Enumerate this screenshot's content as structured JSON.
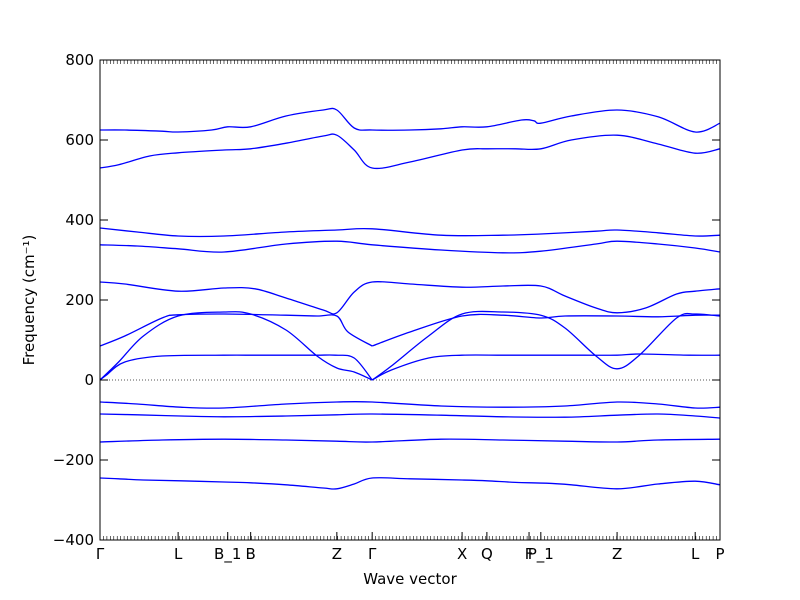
{
  "chart_data": {
    "type": "line",
    "title": "",
    "xlabel": "Wave vector",
    "ylabel": "Frequency (cm⁻¹)",
    "ylim": [
      -400,
      800
    ],
    "yticks": [
      -400,
      -200,
      0,
      200,
      400,
      600,
      800
    ],
    "xlim": [
      0,
      1
    ],
    "grid": false,
    "legend": "none",
    "line_color": "#0000ff",
    "zero_line_color": "#555555",
    "xticks": [
      {
        "label": "Γ",
        "x": 0.0
      },
      {
        "label": "L",
        "x": 0.126
      },
      {
        "label": "B_1",
        "x": 0.206
      },
      {
        "label": "B",
        "x": 0.243
      },
      {
        "label": "Z",
        "x": 0.382
      },
      {
        "label": "Γ",
        "x": 0.439
      },
      {
        "label": "X",
        "x": 0.584
      },
      {
        "label": "Q",
        "x": 0.624
      },
      {
        "label": "F",
        "x": 0.692
      },
      {
        "label": "P_1",
        "x": 0.711
      },
      {
        "label": "Z",
        "x": 0.834
      },
      {
        "label": "L",
        "x": 0.96
      },
      {
        "label": "P",
        "x": 1.0
      }
    ],
    "series": [
      {
        "x": [
          0,
          0.03,
          0.07,
          0.13,
          0.2,
          0.243,
          0.3,
          0.36,
          0.382,
          0.41,
          0.439,
          0.5,
          0.584,
          0.624,
          0.67,
          0.72,
          0.76,
          0.834,
          0.9,
          0.96,
          1
        ],
        "values": [
          -245,
          -247,
          -250,
          -252,
          -255,
          -257,
          -262,
          -270,
          -272,
          -260,
          -245,
          -247,
          -250,
          -252,
          -256,
          -258,
          -262,
          -272,
          -260,
          -253,
          -262
        ]
      },
      {
        "x": [
          0,
          0.1,
          0.2,
          0.3,
          0.382,
          0.439,
          0.55,
          0.65,
          0.75,
          0.834,
          0.9,
          1
        ],
        "values": [
          -155,
          -150,
          -148,
          -150,
          -153,
          -155,
          -148,
          -150,
          -153,
          -155,
          -150,
          -148
        ]
      },
      {
        "x": [
          0,
          0.06,
          0.13,
          0.2,
          0.3,
          0.382,
          0.439,
          0.55,
          0.65,
          0.75,
          0.834,
          0.9,
          0.96,
          1
        ],
        "values": [
          -85,
          -87,
          -90,
          -92,
          -90,
          -87,
          -85,
          -88,
          -92,
          -93,
          -88,
          -85,
          -90,
          -95
        ]
      },
      {
        "x": [
          0,
          0.06,
          0.13,
          0.2,
          0.3,
          0.382,
          0.439,
          0.55,
          0.65,
          0.75,
          0.834,
          0.9,
          0.96,
          1
        ],
        "values": [
          -55,
          -60,
          -68,
          -70,
          -60,
          -55,
          -55,
          -65,
          -68,
          -65,
          -55,
          -60,
          -70,
          -68
        ]
      },
      {
        "x": [
          0,
          0.01,
          0.04,
          0.1,
          0.2,
          0.25,
          0.3,
          0.35,
          0.38,
          0.41,
          0.439
        ],
        "values": [
          0,
          12,
          45,
          60,
          62,
          62,
          62,
          62,
          62,
          55,
          0
        ]
      },
      {
        "x": [
          0.439,
          0.47,
          0.53,
          0.584,
          0.65,
          0.711,
          0.78,
          0.834,
          0.87,
          0.95,
          1
        ],
        "values": [
          0,
          25,
          55,
          62,
          62,
          62,
          62,
          62,
          65,
          62,
          62
        ]
      },
      {
        "x": [
          0,
          0.03,
          0.07,
          0.126,
          0.2,
          0.243,
          0.3,
          0.35,
          0.382,
          0.41,
          0.439
        ],
        "values": [
          0,
          45,
          110,
          160,
          170,
          165,
          125,
          60,
          30,
          20,
          0
        ]
      },
      {
        "x": [
          0.439,
          0.47,
          0.53,
          0.584,
          0.65,
          0.711,
          0.75,
          0.8,
          0.834,
          0.87,
          0.93,
          0.96,
          1
        ],
        "values": [
          0,
          35,
          110,
          165,
          170,
          162,
          130,
          60,
          28,
          62,
          155,
          165,
          160
        ]
      },
      {
        "x": [
          0,
          0.04,
          0.1,
          0.126,
          0.2,
          0.3,
          0.35,
          0.382,
          0.4,
          0.439
        ],
        "values": [
          85,
          110,
          155,
          163,
          165,
          162,
          160,
          160,
          120,
          85
        ]
      },
      {
        "x": [
          0.439,
          0.5,
          0.584,
          0.65,
          0.711,
          0.75,
          0.834,
          0.9,
          0.96,
          1
        ],
        "values": [
          85,
          120,
          160,
          162,
          155,
          160,
          160,
          158,
          162,
          162
        ]
      },
      {
        "x": [
          0,
          0.04,
          0.126,
          0.2,
          0.25,
          0.3,
          0.36,
          0.382,
          0.41,
          0.439,
          0.5,
          0.584,
          0.65,
          0.711,
          0.75,
          0.8,
          0.834,
          0.88,
          0.93,
          0.96,
          1
        ],
        "values": [
          245,
          240,
          222,
          230,
          228,
          205,
          175,
          168,
          220,
          245,
          240,
          232,
          235,
          235,
          210,
          180,
          168,
          180,
          215,
          222,
          228
        ]
      },
      {
        "x": [
          0,
          0.06,
          0.126,
          0.2,
          0.3,
          0.382,
          0.439,
          0.55,
          0.65,
          0.711,
          0.8,
          0.834,
          0.9,
          0.96,
          1
        ],
        "values": [
          338,
          335,
          328,
          320,
          340,
          347,
          338,
          325,
          318,
          322,
          340,
          347,
          340,
          330,
          320
        ]
      },
      {
        "x": [
          0,
          0.06,
          0.126,
          0.2,
          0.3,
          0.382,
          0.439,
          0.55,
          0.65,
          0.711,
          0.8,
          0.834,
          0.9,
          0.96,
          1
        ],
        "values": [
          380,
          370,
          360,
          360,
          370,
          375,
          378,
          362,
          362,
          365,
          372,
          375,
          368,
          360,
          362
        ]
      },
      {
        "x": [
          0,
          0.03,
          0.08,
          0.126,
          0.2,
          0.243,
          0.3,
          0.36,
          0.382,
          0.41,
          0.439,
          0.5,
          0.584,
          0.624,
          0.67,
          0.711,
          0.76,
          0.834,
          0.9,
          0.96,
          1
        ],
        "values": [
          530,
          538,
          560,
          568,
          575,
          578,
          592,
          610,
          612,
          575,
          530,
          545,
          575,
          578,
          578,
          578,
          600,
          612,
          590,
          567,
          578
        ]
      },
      {
        "x": [
          0,
          0.04,
          0.1,
          0.126,
          0.18,
          0.206,
          0.243,
          0.3,
          0.36,
          0.382,
          0.41,
          0.439,
          0.5,
          0.55,
          0.584,
          0.624,
          0.68,
          0.7,
          0.711,
          0.76,
          0.834,
          0.9,
          0.96,
          1
        ],
        "values": [
          625,
          625,
          622,
          620,
          625,
          633,
          633,
          660,
          675,
          675,
          630,
          625,
          625,
          628,
          633,
          633,
          650,
          648,
          642,
          660,
          675,
          658,
          620,
          642
        ]
      }
    ]
  }
}
